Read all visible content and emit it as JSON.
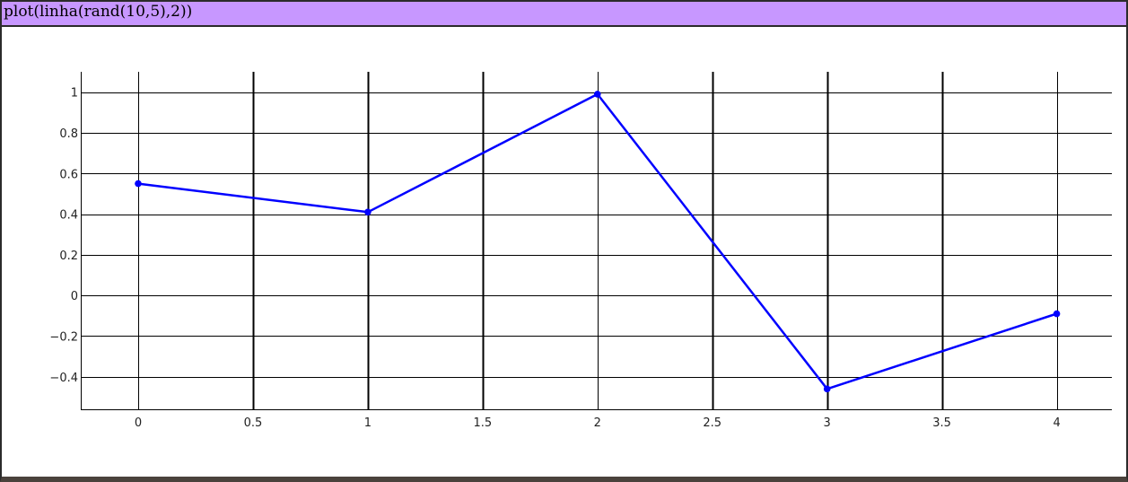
{
  "header": {
    "command": "plot(linha(rand(10,5),2))"
  },
  "chart_data": {
    "type": "line",
    "title": "",
    "xlabel": "",
    "ylabel": "",
    "xlim": [
      -0.25,
      4.24
    ],
    "ylim": [
      -0.56,
      1.1
    ],
    "x_ticks": [
      0,
      0.5,
      1,
      1.5,
      2,
      2.5,
      3,
      3.5,
      4
    ],
    "x_tick_labels": [
      "0",
      "0.5",
      "1",
      "1.5",
      "2",
      "2.5",
      "3",
      "3.5",
      "4"
    ],
    "y_ticks": [
      1,
      0.8,
      0.6,
      0.4,
      0.2,
      0,
      -0.2,
      -0.4
    ],
    "y_tick_labels": [
      "1",
      "0.8",
      "0.6",
      "0.4",
      "0.2",
      "0",
      "−0.2",
      "−0.4"
    ],
    "grid": true,
    "legend": "none",
    "series": [
      {
        "x": [
          0,
          1,
          2,
          3,
          4
        ],
        "y": [
          0.55,
          0.41,
          0.99,
          -0.46,
          -0.09
        ],
        "color": "#0000ff",
        "markers": true
      }
    ]
  }
}
